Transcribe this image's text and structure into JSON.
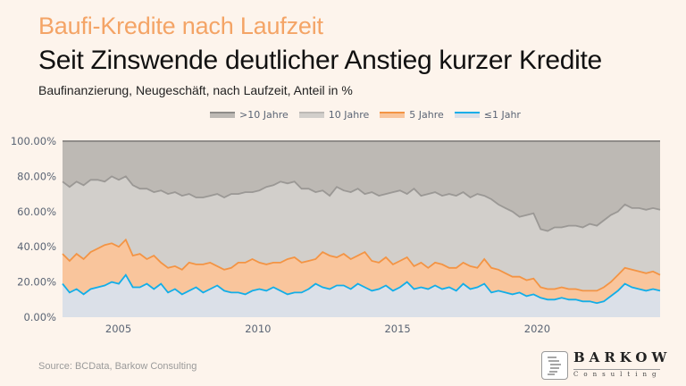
{
  "header": {
    "kicker": "Baufi-Kredite nach Laufzeit",
    "title": "Seit Zinswende deutlicher Anstieg kurzer Kredite",
    "subtitle": "Baufinanzierung, Neugeschäft, nach Laufzeit, Anteil in %"
  },
  "footer": {
    "source": "Source: BCData, Barkow Consulting",
    "logo_name": "BARKOW",
    "logo_sub": "Consulting"
  },
  "chart_data": {
    "type": "area",
    "stacked": true,
    "title": "Baufi-Kredite nach Laufzeit",
    "xlabel": "",
    "ylabel": "Anteil in %",
    "x_start": "2003-Q1",
    "x_step": "quarter",
    "xlim": [
      2003.0,
      2024.4
    ],
    "ylim": [
      0,
      100
    ],
    "x_ticks": [
      2005,
      2010,
      2015,
      2020
    ],
    "x_tick_labels": [
      "2005",
      "2010",
      "2015",
      "2020"
    ],
    "y_ticks": [
      0,
      20,
      40,
      60,
      80,
      100
    ],
    "y_tick_labels": [
      "0.00%",
      "20.00%",
      "40.00%",
      "60.00%",
      "80.00%",
      "100.00%"
    ],
    "grid": false,
    "legend_position": "top-center",
    "legend": [
      {
        "name": ">10 Jahre",
        "color": "#bdb9b4",
        "line": "#8f8c89"
      },
      {
        "name": "10 Jahre",
        "color": "#d2cfcb",
        "line": "#bcb9b5"
      },
      {
        "name": "5 Jahre",
        "color": "#f9c59c",
        "line": "#f39444"
      },
      {
        "name": "≤1 Jahr",
        "color": "#dbe0e8",
        "line": "#12aee8"
      }
    ],
    "cumulative_boundaries_note": "Values are cumulative shares: le1 = ≤1 Jahr; le5 = ≤1 + 5 Jahre; le10 = ≤1 + 5 + 10 Jahre; remainder to 100 = >10 Jahre",
    "series": [
      {
        "name": "≤1 Jahr",
        "key": "le1",
        "values": [
          19,
          14,
          16,
          13,
          16,
          17,
          18,
          20,
          19,
          24,
          17,
          17,
          19,
          16,
          19,
          14,
          16,
          13,
          15,
          17,
          14,
          16,
          18,
          15,
          14,
          14,
          13,
          15,
          16,
          15,
          17,
          15,
          13,
          14,
          14,
          16,
          19,
          17,
          16,
          18,
          18,
          16,
          19,
          17,
          15,
          16,
          18,
          15,
          17,
          20,
          16,
          17,
          16,
          18,
          16,
          17,
          15,
          19,
          16,
          17,
          19,
          14,
          15,
          14,
          13,
          14,
          12,
          13,
          12,
          13,
          11,
          12,
          11,
          11,
          13,
          11,
          11,
          12,
          11,
          11,
          13,
          11,
          12,
          11,
          11,
          12
        ]
      },
      {
        "name": "5 Jahre (cum.)",
        "key": "le5",
        "values": [
          36,
          32,
          36,
          33,
          37,
          39,
          41,
          42,
          40,
          44,
          35,
          36,
          33,
          35,
          31,
          28,
          29,
          27,
          31,
          30,
          30,
          31,
          29,
          27,
          28,
          31,
          31,
          33,
          31,
          30,
          31,
          31,
          33,
          34,
          31,
          32,
          33,
          37,
          35,
          34,
          36,
          33,
          35,
          37,
          32,
          31,
          34,
          30,
          32,
          34,
          29,
          31,
          28,
          31,
          30,
          28,
          28,
          31,
          29,
          28,
          33,
          28,
          27,
          25,
          23,
          23,
          21,
          22,
          20,
          22,
          19,
          20,
          19,
          19,
          21,
          19,
          19,
          19,
          18,
          18,
          20,
          18,
          18,
          18,
          17,
          17
        ]
      },
      {
        "name": "10 Jahre (cum.)",
        "key": "le10",
        "values": [
          77,
          74,
          77,
          75,
          78,
          78,
          77,
          80,
          78,
          80,
          75,
          73,
          73,
          71,
          72,
          70,
          71,
          69,
          70,
          68,
          68,
          69,
          70,
          68,
          70,
          70,
          71,
          71,
          72,
          74,
          75,
          77,
          76,
          77,
          73,
          73,
          71,
          72,
          69,
          74,
          72,
          71,
          73,
          70,
          71,
          69,
          70,
          71,
          72,
          70,
          73,
          69,
          70,
          71,
          69,
          70,
          69,
          71,
          68,
          70,
          69,
          67,
          64,
          62,
          60,
          57,
          58,
          59,
          56,
          56,
          55,
          56,
          55,
          54,
          55,
          56,
          54,
          55,
          53,
          54,
          55,
          53,
          52,
          51,
          50,
          51
        ]
      }
    ],
    "tail_2020_2024": {
      "le1": [
        11,
        10,
        10,
        11,
        10,
        10,
        9,
        9,
        8,
        9,
        12,
        15,
        19,
        17,
        16,
        15,
        16,
        15
      ],
      "le5": [
        17,
        16,
        16,
        17,
        16,
        16,
        15,
        15,
        15,
        17,
        20,
        24,
        28,
        27,
        26,
        25,
        26,
        24
      ],
      "le10": [
        50,
        49,
        51,
        51,
        52,
        52,
        51,
        53,
        52,
        55,
        58,
        60,
        64,
        62,
        62,
        61,
        62,
        61
      ]
    }
  }
}
